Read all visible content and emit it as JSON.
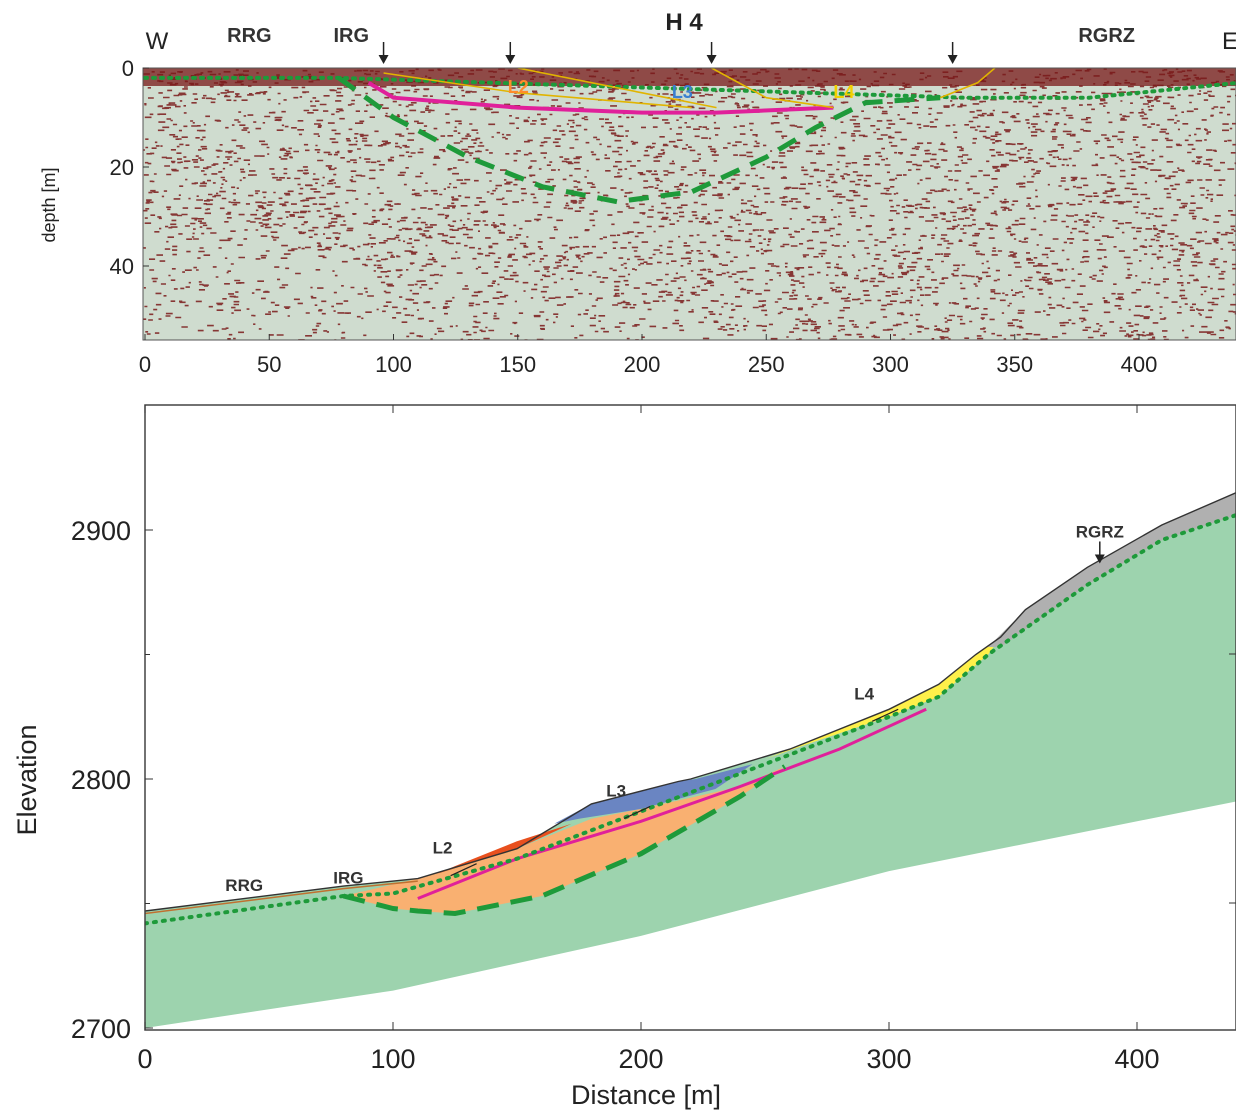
{
  "chart_data": [
    {
      "type": "heatmap",
      "title": "H 4",
      "ylabel": "depth [m]",
      "xlabel": "",
      "xlim": [
        0,
        440
      ],
      "ylim": [
        55,
        0
      ],
      "xticks": [
        "0",
        "50",
        "100",
        "150",
        "200",
        "250",
        "300",
        "350",
        "400"
      ],
      "yticks": [
        "0",
        "20",
        "40"
      ],
      "direction_labels": [
        "W",
        "E"
      ],
      "annotations": [
        {
          "text": "RRG",
          "x": 42
        },
        {
          "text": "IRG",
          "x": 83
        },
        {
          "text": "RGRZ",
          "x": 387
        }
      ],
      "arrow_positions_x": [
        96,
        147,
        228,
        325
      ],
      "overlay_labels": [
        {
          "text": "L2",
          "x": 146,
          "y": 3,
          "color": "#ff8c2a"
        },
        {
          "text": "L3",
          "x": 212,
          "y": 4,
          "color": "#3a7fd0"
        },
        {
          "text": "L4",
          "x": 277,
          "y": 4,
          "color": "#f2d000"
        }
      ],
      "interfaces": {
        "magenta_slip": [
          [
            90,
            3
          ],
          [
            100,
            6
          ],
          [
            150,
            8
          ],
          [
            200,
            9
          ],
          [
            230,
            9
          ],
          [
            277,
            8
          ]
        ],
        "green_dashed_bedrock": [
          [
            78,
            2
          ],
          [
            100,
            10
          ],
          [
            130,
            18
          ],
          [
            160,
            24
          ],
          [
            190,
            27
          ],
          [
            220,
            25
          ],
          [
            250,
            18
          ],
          [
            270,
            12
          ],
          [
            290,
            7
          ],
          [
            320,
            6
          ]
        ],
        "green_dotted_surface": [
          [
            0,
            2
          ],
          [
            78,
            2
          ],
          [
            330,
            6
          ],
          [
            380,
            6
          ],
          [
            440,
            3
          ]
        ]
      }
    },
    {
      "type": "area",
      "title": "",
      "xlabel": "Distance [m]",
      "ylabel": "Elevation",
      "xlim": [
        0,
        440
      ],
      "ylim": [
        2700,
        2950
      ],
      "xticks": [
        "0",
        "100",
        "200",
        "300",
        "400"
      ],
      "yticks": [
        "2700",
        "2800",
        "2900"
      ],
      "annotations": [
        {
          "text": "RRG",
          "x": 40,
          "y": 2755
        },
        {
          "text": "IRG",
          "x": 82,
          "y": 2758
        },
        {
          "text": "L2",
          "x": 120,
          "y": 2770
        },
        {
          "text": "L3",
          "x": 190,
          "y": 2793
        },
        {
          "text": "L4",
          "x": 290,
          "y": 2832
        },
        {
          "text": "RGRZ",
          "x": 385,
          "y": 2897
        }
      ],
      "surface_profile": [
        [
          0,
          2747
        ],
        [
          80,
          2757
        ],
        [
          110,
          2760
        ],
        [
          150,
          2772
        ],
        [
          180,
          2790
        ],
        [
          215,
          2799
        ],
        [
          220,
          2800
        ],
        [
          260,
          2812
        ],
        [
          300,
          2828
        ],
        [
          320,
          2838
        ],
        [
          335,
          2850
        ],
        [
          345,
          2857
        ],
        [
          355,
          2868
        ],
        [
          380,
          2885
        ],
        [
          410,
          2902
        ],
        [
          440,
          2915
        ]
      ],
      "bedrock_dotted": [
        [
          0,
          2742
        ],
        [
          80,
          2753
        ],
        [
          100,
          2754
        ],
        [
          150,
          2768
        ],
        [
          250,
          2806
        ],
        [
          300,
          2825
        ],
        [
          320,
          2833
        ],
        [
          340,
          2850
        ],
        [
          380,
          2878
        ],
        [
          410,
          2896
        ],
        [
          440,
          2906
        ]
      ],
      "bedrock_dashed": [
        [
          80,
          2753
        ],
        [
          100,
          2748
        ],
        [
          110,
          2747
        ],
        [
          125,
          2746
        ],
        [
          160,
          2753
        ],
        [
          200,
          2770
        ],
        [
          240,
          2793
        ],
        [
          258,
          2805
        ]
      ],
      "slip_surface": [
        [
          110,
          2752
        ],
        [
          150,
          2768
        ],
        [
          200,
          2783
        ],
        [
          240,
          2797
        ],
        [
          280,
          2812
        ],
        [
          315,
          2828
        ]
      ],
      "base_line": [
        [
          0,
          2700
        ],
        [
          100,
          2715
        ],
        [
          200,
          2737
        ],
        [
          300,
          2763
        ],
        [
          440,
          2791
        ]
      ],
      "layers": [
        {
          "name": "L2",
          "color": "#f47a20"
        },
        {
          "name": "L3",
          "color": "#6a85c2"
        },
        {
          "name": "L4",
          "color": "#fff04a"
        },
        {
          "name": "RGRZ",
          "color": "#b0b0b0"
        }
      ]
    }
  ]
}
